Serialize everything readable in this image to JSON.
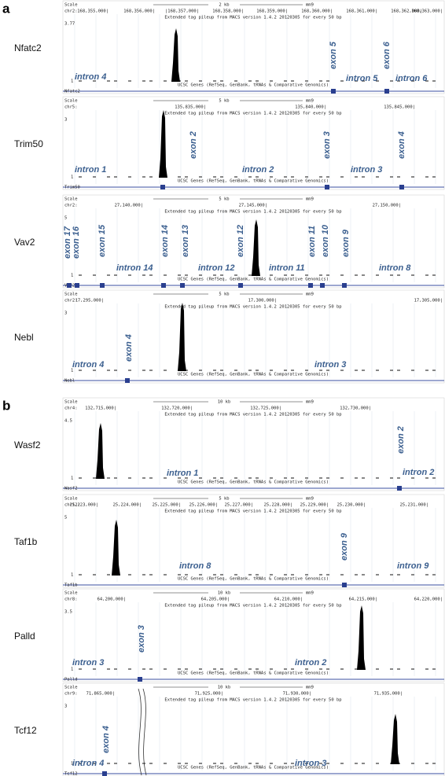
{
  "panels": [
    {
      "label": "a",
      "tracks": [
        {
          "gene": "Nfatc2",
          "scale": "Scale",
          "chrom": "chr2:",
          "max": "3.77",
          "min": "1",
          "bar": "2 kb",
          "assembly": "mm9",
          "coords": [
            "168,355,000|",
            "168,356,000|",
            "|168,357,000|",
            "168,358,000|",
            "168,359,000|",
            "168,360,000|",
            "168,361,000|",
            "168,362,000|",
            "168,363,000|"
          ],
          "pileup": "Extended tag pileup from MACS version 1.4.2 20120305 for every 50 bp",
          "ucsc": "UCSC Genes (RefSeq, GenBank, tRNAs & Comparative Genomics)",
          "track_gene": "Nfatc2",
          "features": [
            "intron 4",
            "exon 5",
            "intron 5",
            "exon 6",
            "intron 6"
          ]
        },
        {
          "gene": "Trim50",
          "scale": "Scale",
          "chrom": "chr5:",
          "max": "3",
          "min": "1",
          "bar": "5 kb",
          "assembly": "mm9",
          "coords": [
            "135,835,000|",
            "135,840,000|",
            "135,845,000|"
          ],
          "pileup": "Extended tag pileup from MACS version 1.4.2 20120305 for every 50 bp",
          "ucsc": "UCSC Genes (RefSeq, GenBank, tRNAs & Comparative Genomics)",
          "track_gene": "Trim50",
          "features": [
            "intron 1",
            "exon 2",
            "intron 2",
            "exon 3",
            "intron 3",
            "exon 4"
          ]
        },
        {
          "gene": "Vav2",
          "scale": "Scale",
          "chrom": "chr2:",
          "max": "5",
          "min": "1",
          "bar": "5 kb",
          "assembly": "mm9",
          "coords": [
            "27,140,000|",
            "27,145,000|",
            "27,150,000|"
          ],
          "pileup": "Extended tag pileup from MACS version 1.4.2 20120305 for every 50 bp",
          "ucsc": "UCSC Genes (RefSeq, GenBank, tRNAs & Comparative Genomics)",
          "track_gene": "Vav2",
          "features": [
            "exon 17",
            "exon 16",
            "exon 15",
            "intron 14",
            "exon 14",
            "exon 13",
            "intron 12",
            "exon 12",
            "intron 11",
            "exon 11",
            "exon 10",
            "exon 9",
            "intron 8"
          ]
        },
        {
          "gene": "Nebl",
          "scale": "Scale",
          "chrom": "chr2:",
          "max": "3",
          "min": "1",
          "bar": "5 kb",
          "assembly": "mm9",
          "coords": [
            "17,295,000|",
            "17,300,000|",
            "17,305,000|"
          ],
          "pileup": "Extended tag pileup from MACS version 1.4.2 20120305 for every 50 bp",
          "ucsc": "UCSC Genes (RefSeq, GenBank, tRNAs & Comparative Genomics)",
          "track_gene": "Nebl",
          "features": [
            "intron 4",
            "exon 4",
            "intron 3"
          ]
        }
      ]
    },
    {
      "label": "b",
      "tracks": [
        {
          "gene": "Wasf2",
          "scale": "Scale",
          "chrom": "chr4:",
          "max": "4.5",
          "min": "1",
          "bar": "10 kb",
          "assembly": "mm9",
          "coords": [
            "132,715,000|",
            "132,720,000|",
            "132,725,000|",
            "132,730,000|"
          ],
          "pileup": "Extended tag pileup from MACS version 1.4.2 20120305 for every 50 bp",
          "ucsc": "UCSC Genes (RefSeq, GenBank, tRNAs & Comparative Genomics)",
          "track_gene": "Wasf2",
          "features": [
            "intron 1",
            "exon 2",
            "intron 2"
          ]
        },
        {
          "gene": "Taf1b",
          "scale": "Scale",
          "chrom": "chr12:",
          "max": "5",
          "min": "1",
          "bar": "5 kb",
          "assembly": "mm9",
          "coords": [
            "25,223,000|",
            "25,224,000|",
            "25,225,000|",
            "25,226,000|",
            "25,227,000|",
            "25,228,000|",
            "25,229,000|",
            "25,230,000|",
            "25,231,000|"
          ],
          "pileup": "Extended tag pileup from MACS version 1.4.2 20120305 for every 50 bp",
          "ucsc": "UCSC Genes (RefSeq, GenBank, tRNAs & Comparative Genomics)",
          "track_gene": "Taf1b",
          "features": [
            "intron 8",
            "exon 9",
            "intron 9"
          ]
        },
        {
          "gene": "Palld",
          "scale": "Scale",
          "chrom": "chr8:",
          "max": "3.5",
          "min": "1",
          "bar": "10 kb",
          "assembly": "mm9",
          "coords": [
            "64,200,000|",
            "64,205,000|",
            "64,210,000|",
            "64,215,000|",
            "64,220,000|"
          ],
          "pileup": "Extended tag pileup from MACS version 1.4.2 20120305 for every 50 bp",
          "ucsc": "UCSC Genes (RefSeq, GenBank, tRNAs & Comparative Genomics)",
          "track_gene": "Palld",
          "features": [
            "intron 3",
            "exon 3",
            "intron 2"
          ]
        },
        {
          "gene": "Tcf12",
          "scale": "Scale",
          "chrom": "chr9:",
          "max": "3",
          "min": "1",
          "bar": "10 kb",
          "assembly": "mm9",
          "coords": [
            "71,865,000|",
            "71,925,000|",
            "71,930,000|",
            "71,935,000|"
          ],
          "pileup": "Extended tag pileup from MACS version 1.4.2 20120305 for every 50 bp",
          "ucsc": "UCSC Genes (RefSeq, GenBank, tRNAs & Comparative Genomics)",
          "track_gene": "Tcf12",
          "features": [
            "intron 4",
            "exon 4",
            "intron 3"
          ]
        }
      ]
    }
  ]
}
